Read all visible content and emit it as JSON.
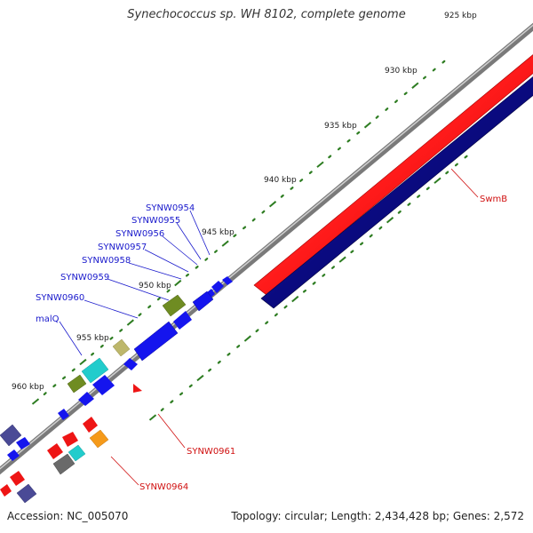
{
  "header": {
    "title": "Synechococcus sp. WH 8102, complete genome"
  },
  "footer": {
    "accession": "Accession: NC_005070",
    "summary": "Topology: circular; Length: 2,434,428 bp; Genes: 2,572"
  },
  "colors": {
    "backbone": "#8c8c8c",
    "forward_strand": "#ff1a1a",
    "reverse_strand": "#0a0a80",
    "tick": "#2e7d22",
    "label_blue": "#1a1acc",
    "label_red": "#d01010",
    "gene_blue": "#1515ee",
    "gene_red": "#ee1515",
    "gene_olive": "#6f8c22",
    "gene_cyan": "#22cccc",
    "gene_khaki": "#bdb76b",
    "gene_purple": "#4a4a96",
    "gene_gray": "#6a6a6a",
    "gene_orange": "#f59a1a"
  },
  "scale": {
    "unit": "kbp",
    "labels": [
      "925 kbp",
      "930 kbp",
      "935 kbp",
      "940 kbp",
      "945 kbp",
      "950 kbp",
      "955 kbp",
      "960 kbp"
    ]
  },
  "gene_labels": [
    {
      "name": "SYNW0954",
      "strand": "forward"
    },
    {
      "name": "SYNW0955",
      "strand": "forward"
    },
    {
      "name": "SYNW0956",
      "strand": "forward"
    },
    {
      "name": "SYNW0957",
      "strand": "forward"
    },
    {
      "name": "SYNW0958",
      "strand": "forward"
    },
    {
      "name": "SYNW0959",
      "strand": "forward"
    },
    {
      "name": "SYNW0960",
      "strand": "forward"
    },
    {
      "name": "malQ",
      "strand": "forward"
    },
    {
      "name": "SwmB",
      "strand": "reverse"
    },
    {
      "name": "SYNW0961",
      "strand": "reverse"
    },
    {
      "name": "SYNW0964",
      "strand": "reverse"
    }
  ]
}
